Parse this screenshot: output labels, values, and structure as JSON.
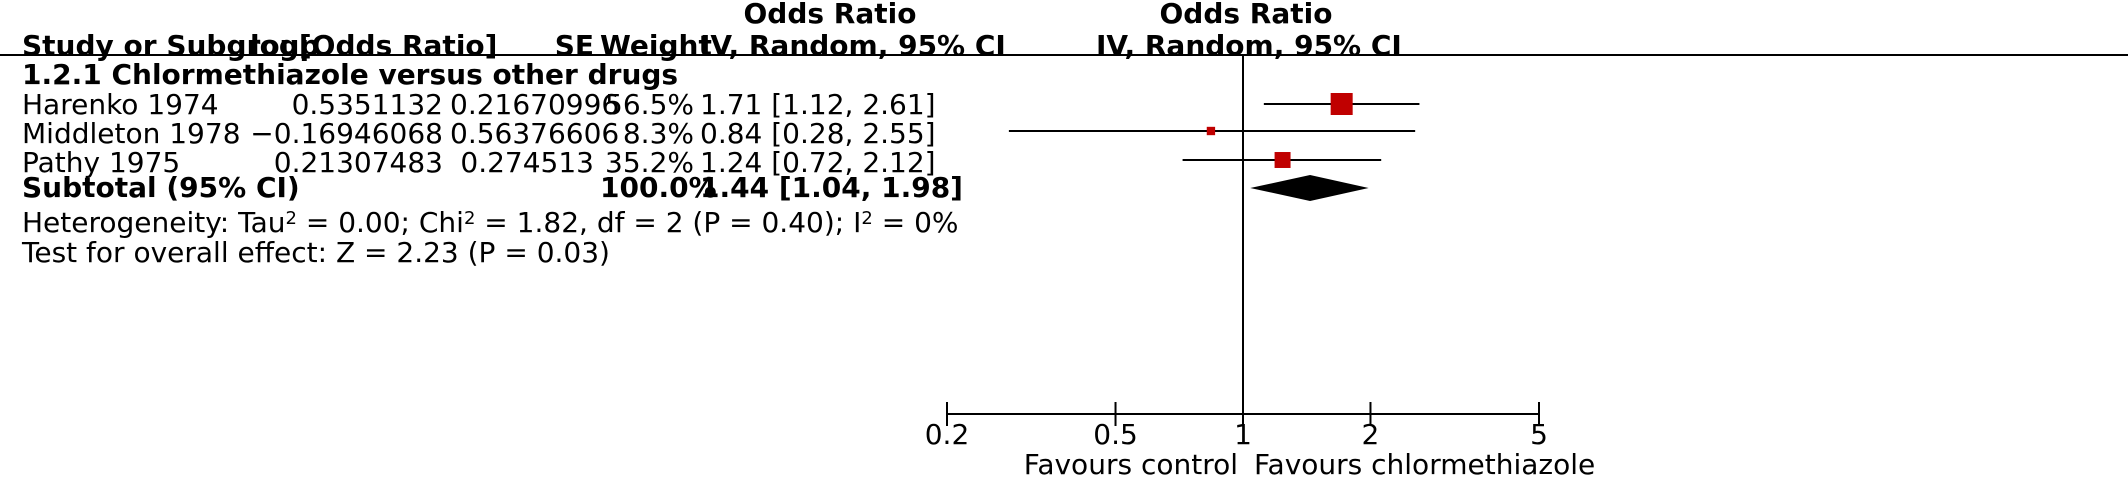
{
  "chart_data": {
    "type": "forest",
    "headers": {
      "study": "Study or Subgroup",
      "logor": "log[Odds Ratio]",
      "se": "SE",
      "weight": "Weight",
      "or_top": "Odds Ratio",
      "or_sub": "IV, Random, 95% CI",
      "plot_top": "Odds Ratio",
      "plot_sub": "IV, Random, 95% CI"
    },
    "subgroup": "1.2.1 Chlormethiazole versus other drugs",
    "studies": [
      {
        "name": "Harenko 1974",
        "logor": "0.5351132",
        "se": "0.21670996",
        "weight": "56.5%",
        "ci_text": "1.71 [1.12, 2.61]",
        "or": 1.71,
        "lo": 1.12,
        "hi": 2.61,
        "w": 56.5
      },
      {
        "name": "Middleton 1978",
        "logor": "−0.16946068",
        "se": "0.56376606",
        "weight": "8.3%",
        "ci_text": "0.84 [0.28, 2.55]",
        "or": 0.84,
        "lo": 0.28,
        "hi": 2.55,
        "w": 8.3
      },
      {
        "name": "Pathy 1975",
        "logor": "0.21307483",
        "se": "0.274513",
        "weight": "35.2%",
        "ci_text": "1.24 [0.72, 2.12]",
        "or": 1.24,
        "lo": 0.72,
        "hi": 2.12,
        "w": 35.2
      }
    ],
    "subtotal": {
      "label": "Subtotal (95% CI)",
      "weight": "100.0%",
      "ci_text": "1.44 [1.04, 1.98]",
      "or": 1.44,
      "lo": 1.04,
      "hi": 1.98
    },
    "heterogeneity": {
      "prefix": "Heterogeneity: Tau",
      "tau_part": " = 0.00; Chi",
      "chi_part": " = 1.82, df = 2 (P = 0.40); I",
      "i_part": " = 0%",
      "sup": "2"
    },
    "overall_effect": "Test for overall effect: Z = 2.23 (P = 0.03)",
    "axis": {
      "scale": "log",
      "range": [
        0.2,
        5
      ],
      "ticks": [
        0.2,
        0.5,
        1,
        2,
        5
      ],
      "tick_labels": [
        "0.2",
        "0.5",
        "1",
        "2",
        "5"
      ],
      "favours_left": "Favours control",
      "favours_right": "Favours chlormethiazole"
    },
    "colors": {
      "marker": "#c00000",
      "diamond": "#000000",
      "lines": "#000000"
    }
  }
}
